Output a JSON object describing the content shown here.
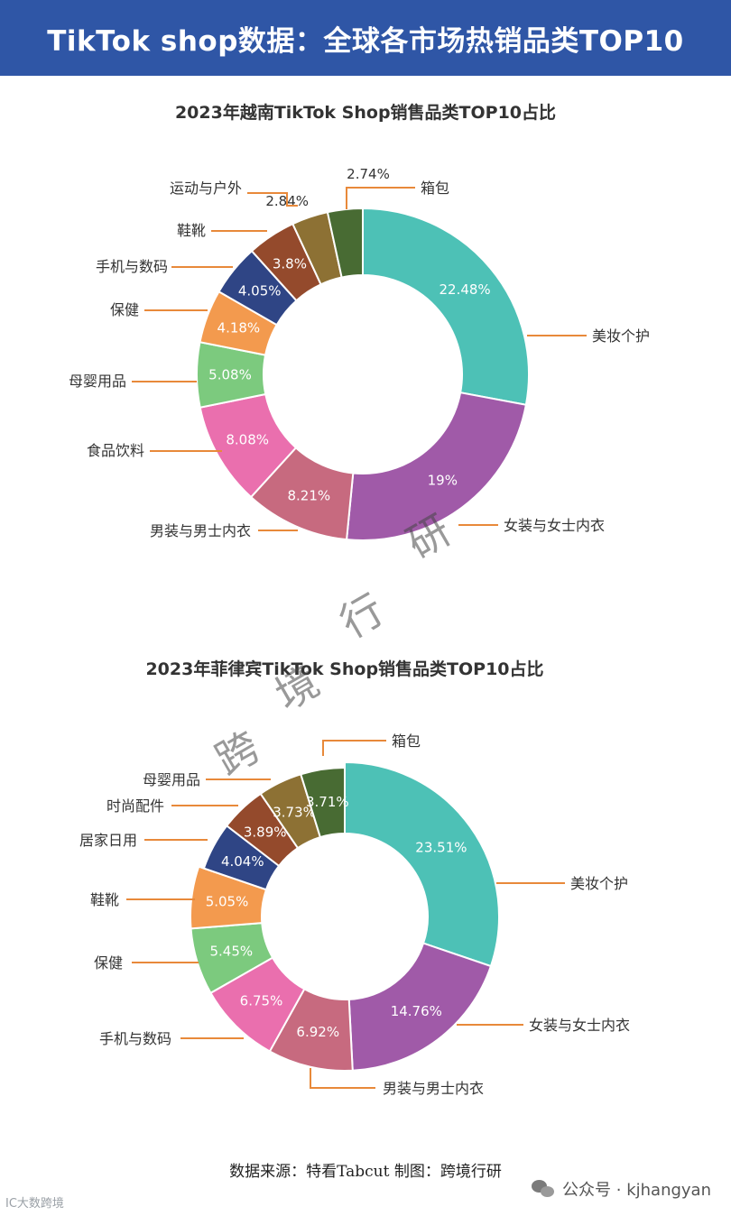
{
  "header": {
    "title": "TikTok shop数据：全球各市场热销品类TOP10"
  },
  "watermark": [
    "跨",
    "境",
    "行",
    "研"
  ],
  "source_text": "数据来源：特看Tabcut   制图：跨境行研",
  "credits": {
    "left": "IC大数跨境",
    "right": "公众号 · kjhangyan"
  },
  "chart_data": [
    {
      "type": "pie",
      "title": "2023年越南TikTok Shop销售品类TOP10占比",
      "slices": [
        {
          "label": "美妆个护",
          "value": 22.48,
          "text": "22.48%",
          "color": "#4dc1b6"
        },
        {
          "label": "女装与女士内衣",
          "value": 19,
          "text": "19%",
          "color": "#a05aa8"
        },
        {
          "label": "男装与男士内衣",
          "value": 8.21,
          "text": "8.21%",
          "color": "#c76a7f"
        },
        {
          "label": "食品饮料",
          "value": 8.08,
          "text": "8.08%",
          "color": "#ea6fae"
        },
        {
          "label": "母婴用品",
          "value": 5.08,
          "text": "5.08%",
          "color": "#7cca7e"
        },
        {
          "label": "保健",
          "value": 4.18,
          "text": "4.18%",
          "color": "#f39a4e"
        },
        {
          "label": "手机与数码",
          "value": 4.05,
          "text": "4.05%",
          "color": "#2f4585"
        },
        {
          "label": "鞋靴",
          "value": 3.8,
          "text": "3.8%",
          "color": "#944a2c"
        },
        {
          "label": "运动与户外",
          "value": 2.84,
          "text": "2.84%",
          "color": "#8d7134"
        },
        {
          "label": "箱包",
          "value": 2.74,
          "text": "2.74%",
          "color": "#486b33"
        }
      ]
    },
    {
      "type": "pie",
      "title": "2023年菲律宾TikTok Shop销售品类TOP10占比",
      "slices": [
        {
          "label": "美妆个护",
          "value": 23.51,
          "text": "23.51%",
          "color": "#4dc1b6"
        },
        {
          "label": "女装与女士内衣",
          "value": 14.76,
          "text": "14.76%",
          "color": "#a05aa8"
        },
        {
          "label": "男装与男士内衣",
          "value": 6.92,
          "text": "6.92%",
          "color": "#c76a7f"
        },
        {
          "label": "手机与数码",
          "value": 6.75,
          "text": "6.75%",
          "color": "#ea6fae"
        },
        {
          "label": "保健",
          "value": 5.45,
          "text": "5.45%",
          "color": "#7cca7e"
        },
        {
          "label": "鞋靴",
          "value": 5.05,
          "text": "5.05%",
          "color": "#f39a4e"
        },
        {
          "label": "居家日用",
          "value": 4.04,
          "text": "4.04%",
          "color": "#2f4585"
        },
        {
          "label": "时尚配件",
          "value": 3.89,
          "text": "3.89%",
          "color": "#944a2c"
        },
        {
          "label": "母婴用品",
          "value": 3.73,
          "text": "3.73%",
          "color": "#8d7134"
        },
        {
          "label": "箱包",
          "value": 3.71,
          "text": "3.71%",
          "color": "#486b33"
        }
      ]
    }
  ]
}
